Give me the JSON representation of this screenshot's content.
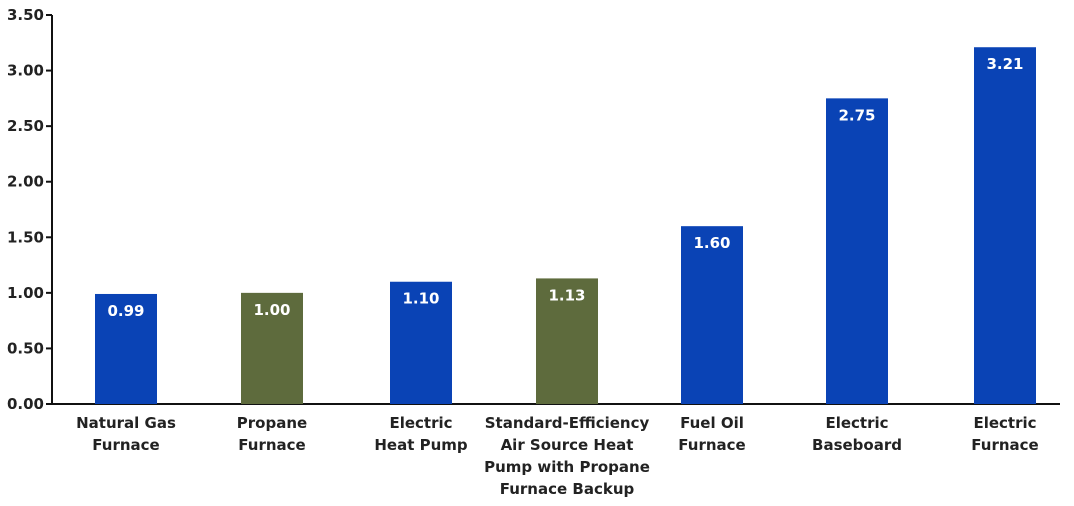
{
  "chart_data": {
    "type": "bar",
    "categories": [
      [
        "Natural Gas",
        "Furnace"
      ],
      [
        "Propane",
        "Furnace"
      ],
      [
        "Electric",
        "Heat Pump"
      ],
      [
        "Standard-Efficiency",
        "Air Source Heat",
        "Pump with Propane",
        "Furnace Backup"
      ],
      [
        "Fuel Oil",
        "Furnace"
      ],
      [
        "Electric",
        "Baseboard"
      ],
      [
        "Electric",
        "Furnace"
      ]
    ],
    "values": [
      0.99,
      1.0,
      1.1,
      1.13,
      1.6,
      2.75,
      3.21
    ],
    "value_labels": [
      "0.99",
      "1.00",
      "1.10",
      "1.13",
      "1.60",
      "2.75",
      "3.21"
    ],
    "bar_colors": [
      "#0a43b5",
      "#5e6b3d",
      "#0a43b5",
      "#5e6b3d",
      "#0a43b5",
      "#0a43b5",
      "#0a43b5"
    ],
    "yticks": [
      "0.00",
      "0.50",
      "1.00",
      "1.50",
      "2.00",
      "2.50",
      "3.00",
      "3.50"
    ],
    "ylim": [
      0,
      3.5
    ],
    "grid": false,
    "title": "",
    "xlabel": "",
    "ylabel": ""
  }
}
